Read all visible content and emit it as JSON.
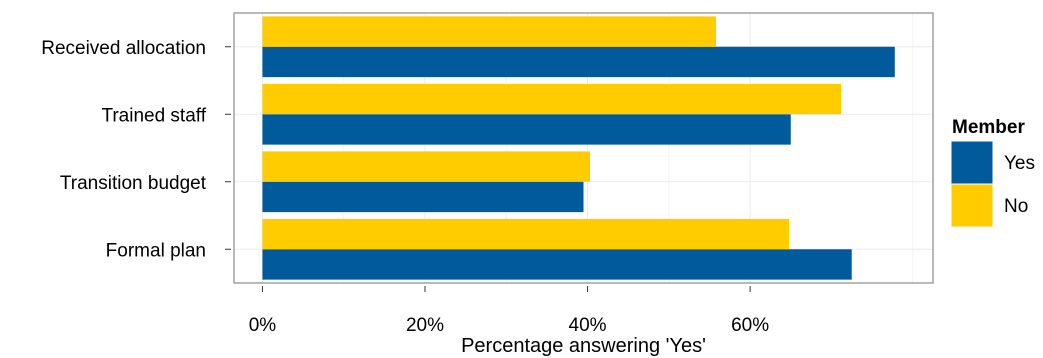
{
  "chart_data": {
    "type": "bar",
    "orientation": "horizontal",
    "categories": [
      "Received allocation",
      "Trained staff",
      "Transition budget",
      "Formal plan"
    ],
    "series": [
      {
        "name": "Yes",
        "color": "#005a9c",
        "values": [
          77.8,
          65.0,
          39.5,
          72.5
        ]
      },
      {
        "name": "No",
        "color": "#ffcc00",
        "values": [
          55.8,
          71.2,
          40.3,
          64.8
        ]
      }
    ],
    "xlabel": "Percentage answering 'Yes'",
    "ylabel": "",
    "xlim": [
      -3.5,
      82.5
    ],
    "xticks": [
      0,
      20,
      40,
      60
    ],
    "xtick_labels": [
      "0%",
      "20%",
      "40%",
      "60%"
    ],
    "grid": true,
    "legend": {
      "title": "Member",
      "position": "right"
    }
  }
}
